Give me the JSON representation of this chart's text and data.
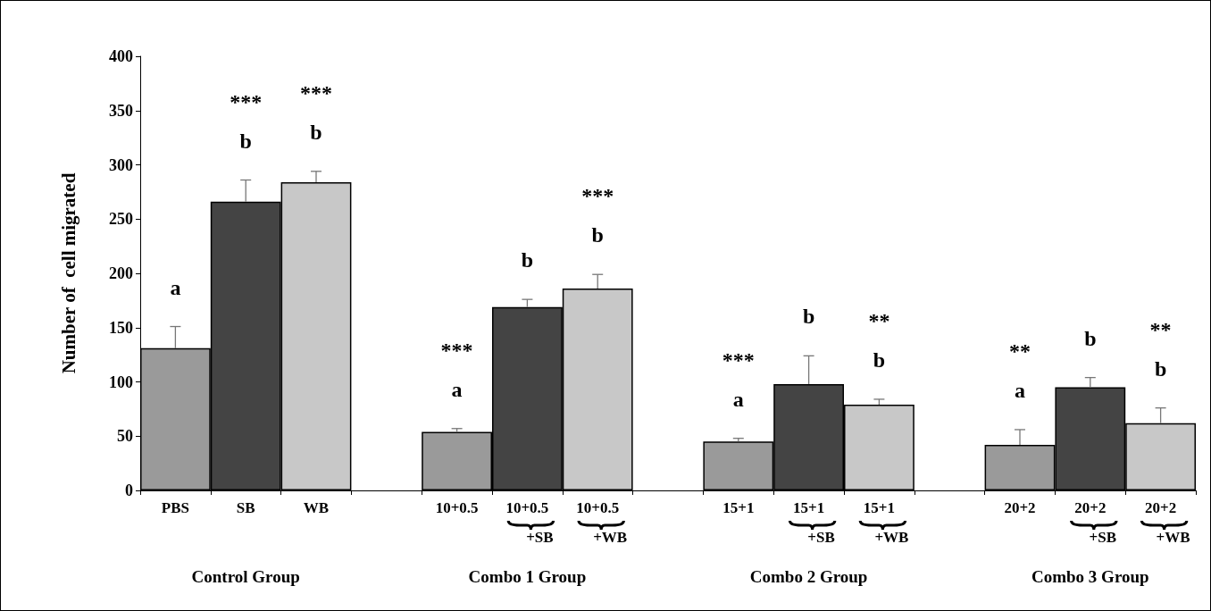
{
  "chart_data": {
    "type": "bar",
    "ylabel": "Number of  cell migrated",
    "categories": [
      "PBS",
      "SB",
      "WB",
      null,
      "10+0.5",
      "10+0.5\n+SB",
      "10+0.5\n+WB",
      null,
      "15+1",
      "15+1\n+SB",
      "15+1\n+WB",
      null,
      "20+2",
      "20+2\n+SB",
      "20+2\n+WB"
    ],
    "values": [
      131,
      266,
      284,
      null,
      54,
      169,
      186,
      null,
      45,
      98,
      79,
      null,
      42,
      95,
      62
    ],
    "errors": [
      [
        131,
        151
      ],
      [
        266,
        286
      ],
      [
        284,
        294
      ],
      null,
      [
        54,
        57
      ],
      [
        169,
        176
      ],
      [
        186,
        199
      ],
      null,
      [
        45,
        48
      ],
      [
        98,
        124
      ],
      [
        79,
        84
      ],
      null,
      [
        42,
        56
      ],
      [
        95,
        104
      ],
      [
        62,
        76
      ]
    ],
    "colors": [
      "#9a9a9a",
      "#444444",
      "#c8c8c8",
      null,
      "#9a9a9a",
      "#444444",
      "#c8c8c8",
      null,
      "#9a9a9a",
      "#444444",
      "#c8c8c8",
      null,
      "#9a9a9a",
      "#444444",
      "#c8c8c8"
    ],
    "ylim": [
      0,
      400
    ],
    "yticks": [
      0,
      50,
      100,
      150,
      200,
      250,
      300,
      350,
      400
    ],
    "grid": false,
    "value_labels": [
      "a",
      "***\nb",
      "***\nb",
      null,
      "***\na",
      "b",
      "***\nb",
      null,
      "***\na",
      "b",
      "**\nb",
      null,
      "**\na",
      "b",
      "**\nb"
    ],
    "annotations": [
      "Control Group",
      "Combo 1 Group",
      "Combo 2 Group",
      "Combo 3 Group"
    ]
  }
}
